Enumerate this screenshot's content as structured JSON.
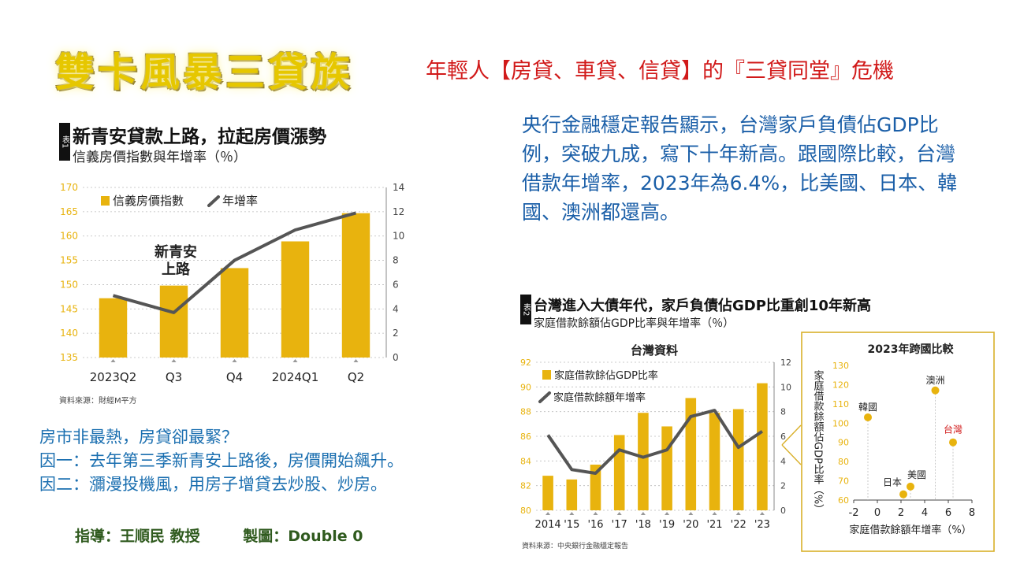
{
  "header": {
    "title": "雙卡風暴三貸族",
    "subtitle": "年輕人【房貸、車貸、信貸】的『三貸同堂』危機"
  },
  "summary": {
    "text": "央行金融穩定報告顯示，台灣家戶負債佔GDP比例，突破九成，寫下十年新高。跟國際比較，台灣借款年增率，2023年為6.4%，比美國、日本、韓國、澳洲都還高。"
  },
  "notes": {
    "line1": "房市非最熱，房貸卻最緊？",
    "line2": "因一：去年第三季新青安上路後，房價開始飆升。",
    "line3": "因二：瀰漫投機風，用房子增貸去炒股、炒房。"
  },
  "credits": {
    "advisor": "指導：王順民 教授",
    "maker": "製圖：Double 0"
  },
  "chart1_meta": {
    "tag": "表1",
    "title": "新青安貸款上路，拉起房價漲勢",
    "subtitle": "信義房價指數與年增率（％）",
    "annotation_line1": "新青安",
    "annotation_line2": "上路",
    "source": "資料來源：財經M平方"
  },
  "chart2_meta": {
    "tag": "表2",
    "title": "台灣進入大債年代，家戶負債佔GDP比重創10年新高",
    "subtitle": "家庭借款餘額佔GDP比率與年增率（％）",
    "panel_title": "台灣資料",
    "source": "資料來源：中央銀行金融穩定報告"
  },
  "chart3_meta": {
    "title": "2023年跨國比較",
    "ylabel": "家庭借款餘額佔GDP比率（%）",
    "xlabel": "家庭借款餘額年增率（%）"
  },
  "colors": {
    "bar": "#e8b30e",
    "line": "#555555",
    "highlight": "#d11a1a",
    "summary_text": "#1b5fa8"
  },
  "chart_data": [
    {
      "type": "bar",
      "categories": [
        "2023Q2",
        "Q3",
        "Q4",
        "2024Q1",
        "Q2"
      ],
      "series": [
        {
          "name": "信義房價指數",
          "type": "bar",
          "axis": "left",
          "values": [
            147.2,
            149.8,
            153.4,
            158.9,
            164.7
          ]
        },
        {
          "name": "年增率",
          "type": "line",
          "axis": "right",
          "values": [
            5.1,
            3.7,
            8.0,
            10.5,
            11.9
          ]
        }
      ],
      "ylim": [
        135,
        170
      ],
      "yticks": [
        135,
        140,
        145,
        150,
        155,
        160,
        165,
        170
      ],
      "y2lim": [
        0,
        14
      ],
      "y2ticks": [
        0,
        2,
        4,
        6,
        8,
        10,
        12,
        14
      ]
    },
    {
      "type": "bar",
      "categories": [
        "2014",
        "'15",
        "'16",
        "'17",
        "'18",
        "'19",
        "'20",
        "'21",
        "'22",
        "'23"
      ],
      "series": [
        {
          "name": "家庭借款餘佔GDP比率",
          "type": "bar",
          "axis": "left",
          "values": [
            82.8,
            82.5,
            83.7,
            86.1,
            87.9,
            86.8,
            89.1,
            87.9,
            88.2,
            90.3
          ]
        },
        {
          "name": "家庭借款餘額年增率",
          "type": "line",
          "axis": "right",
          "values": [
            6.1,
            3.3,
            3.0,
            4.9,
            4.3,
            4.9,
            7.6,
            8.1,
            5.1,
            6.4
          ]
        }
      ],
      "ylim": [
        80,
        92
      ],
      "yticks": [
        80,
        82,
        84,
        86,
        88,
        90,
        92
      ],
      "y2lim": [
        0,
        12
      ],
      "y2ticks": [
        0,
        2,
        4,
        6,
        8,
        10,
        12
      ]
    },
    {
      "type": "scatter",
      "points": [
        {
          "label": "韓國",
          "x": -0.8,
          "y": 103
        },
        {
          "label": "日本",
          "x": 2.2,
          "y": 63
        },
        {
          "label": "美國",
          "x": 2.8,
          "y": 67
        },
        {
          "label": "澳洲",
          "x": 4.9,
          "y": 117
        },
        {
          "label": "台灣",
          "x": 6.4,
          "y": 90,
          "highlight": true
        }
      ],
      "xlim": [
        -2,
        8
      ],
      "xticks": [
        -2,
        0,
        2,
        4,
        6,
        8
      ],
      "ylim": [
        60,
        130
      ],
      "yticks": [
        60,
        70,
        80,
        90,
        100,
        110,
        120,
        130
      ]
    }
  ]
}
